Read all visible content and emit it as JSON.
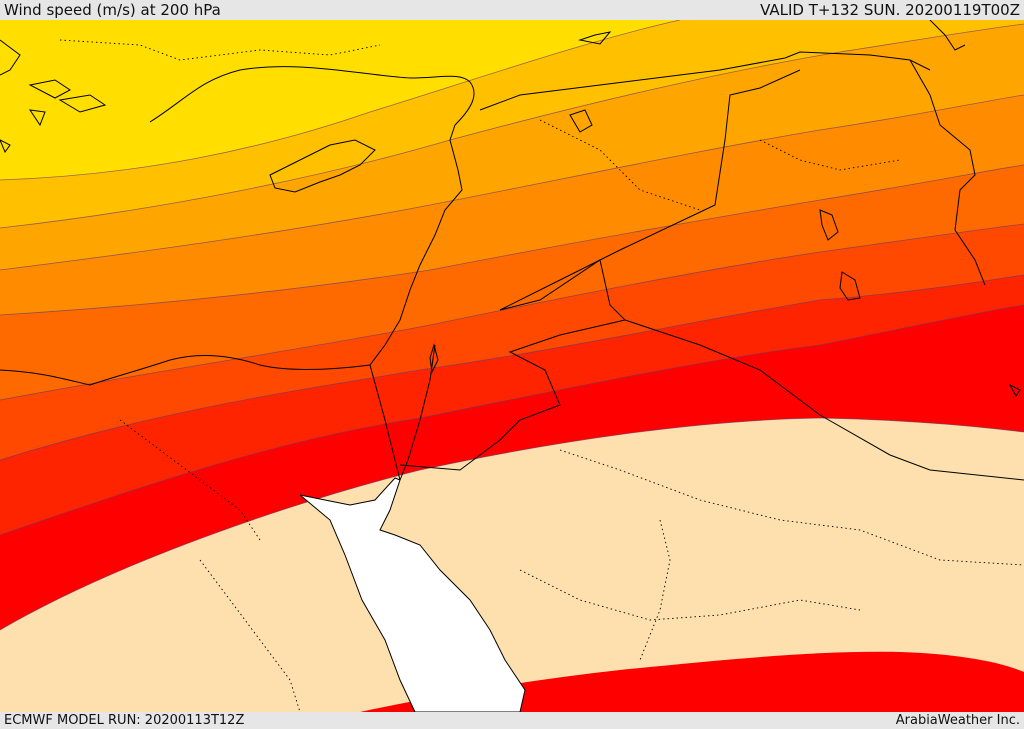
{
  "header": {
    "title": "Wind speed (m/s) at 200 hPa",
    "valid": "VALID T+132 SUN. 20200119T00Z"
  },
  "footer": {
    "model_run": "ECMWF MODEL RUN: 20200113T12Z",
    "credit": "ArabiaWeather Inc."
  },
  "legend_colors": {
    "band_1": "#ffde00",
    "band_2": "#ffc000",
    "band_3": "#ffa500",
    "band_4": "#ff8c00",
    "band_5": "#ff6a00",
    "band_6": "#ff4800",
    "band_7": "#ff2400",
    "band_8": "#ff0000",
    "below_threshold": "#fde0ad",
    "sea_uncolored": "#ffffff"
  }
}
